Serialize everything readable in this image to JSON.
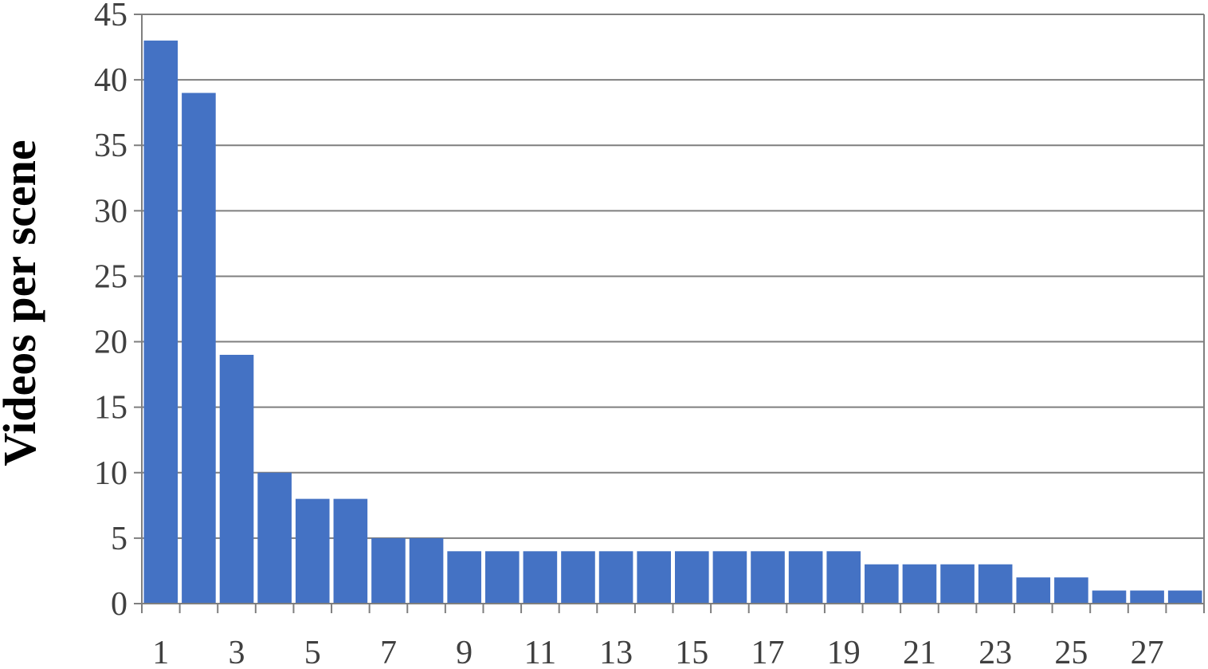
{
  "colors": {
    "bar": "#4472C4",
    "grid": "#7f7f7f",
    "axis": "#7f7f7f",
    "frame": "#7f7f7f",
    "tick_text": "#404040",
    "title_text": "#000000"
  },
  "chart_data": {
    "type": "bar",
    "title": "",
    "xlabel": "",
    "ylabel": "Videos per scene",
    "ylim": [
      0,
      45
    ],
    "yticks": [
      0,
      5,
      10,
      15,
      20,
      25,
      30,
      35,
      40,
      45
    ],
    "grid": true,
    "legend": "none",
    "categories": [
      1,
      2,
      3,
      4,
      5,
      6,
      7,
      8,
      9,
      10,
      11,
      12,
      13,
      14,
      15,
      16,
      17,
      18,
      19,
      20,
      21,
      22,
      23,
      24,
      25,
      26,
      27,
      28
    ],
    "xtick_labels": [
      1,
      3,
      5,
      7,
      9,
      11,
      13,
      15,
      17,
      19,
      21,
      23,
      25,
      27
    ],
    "series": [
      {
        "values": [
          43,
          39,
          19,
          10,
          8,
          8,
          5,
          5,
          4,
          4,
          4,
          4,
          4,
          4,
          4,
          4,
          4,
          4,
          4,
          3,
          3,
          3,
          3,
          2,
          2,
          1,
          1,
          1
        ]
      }
    ]
  }
}
